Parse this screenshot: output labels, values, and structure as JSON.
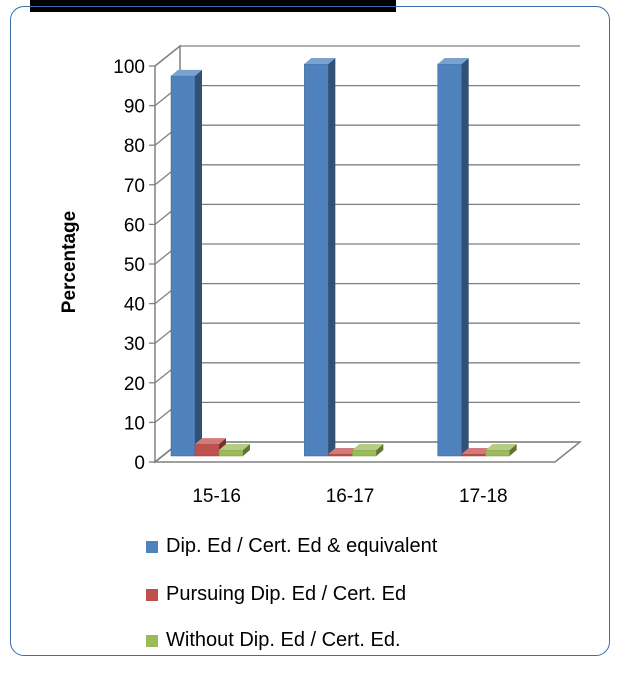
{
  "chart_data": {
    "type": "bar",
    "categories": [
      "15-16",
      "16-17",
      "17-18"
    ],
    "ylabel": "Percentage",
    "xlabel": "",
    "ylim": [
      0,
      100
    ],
    "yticks": [
      0,
      10,
      20,
      30,
      40,
      50,
      60,
      70,
      80,
      90,
      100
    ],
    "grid": true,
    "legend_position": "bottom",
    "series": [
      {
        "name": "Dip. Ed / Cert. Ed & equivalent",
        "values": [
          96,
          99,
          99
        ],
        "color": "#4f81bd"
      },
      {
        "name": "Pursuing Dip. Ed / Cert. Ed",
        "values": [
          3,
          0.5,
          0.5
        ],
        "color": "#c0504d"
      },
      {
        "name": "Without Dip. Ed / Cert. Ed.",
        "values": [
          1.5,
          1.5,
          1.5
        ],
        "color": "#9bbb59"
      }
    ]
  }
}
